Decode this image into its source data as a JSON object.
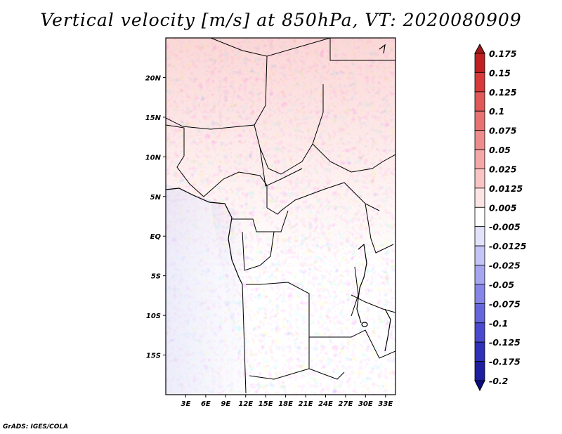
{
  "title": "Vertical velocity [m/s] at 850hPa, VT: 2020080909",
  "footer": "GrADS: IGES/COLA",
  "map": {
    "lon_ticks": [
      "3E",
      "6E",
      "9E",
      "12E",
      "15E",
      "18E",
      "21E",
      "24E",
      "27E",
      "30E",
      "33E"
    ],
    "lat_ticks": [
      "20N",
      "15N",
      "10N",
      "5N",
      "EQ",
      "5S",
      "10S",
      "15S"
    ],
    "lon_range": [
      0,
      34.5
    ],
    "lat_range": [
      -20,
      25
    ],
    "field": "vertical velocity",
    "level": "850hPa",
    "units": "m/s"
  },
  "colorbar": {
    "labels": [
      "0.175",
      "0.15",
      "0.125",
      "0.1",
      "0.075",
      "0.05",
      "0.025",
      "0.0125",
      "0.005",
      "-0.005",
      "-0.0125",
      "-0.025",
      "-0.05",
      "-0.075",
      "-0.1",
      "-0.125",
      "-0.175",
      "-0.2"
    ],
    "colors": [
      "#a01818",
      "#c02020",
      "#d83a3a",
      "#e05858",
      "#e87272",
      "#ee8c8c",
      "#f4a8a8",
      "#fac4c4",
      "#fde4e4",
      "#ffffff",
      "#e2e2fb",
      "#c4c4f6",
      "#a6a6f0",
      "#8686e8",
      "#6666dc",
      "#4a4ad0",
      "#3030b8",
      "#1e1ea0",
      "#0c0c80"
    ]
  }
}
